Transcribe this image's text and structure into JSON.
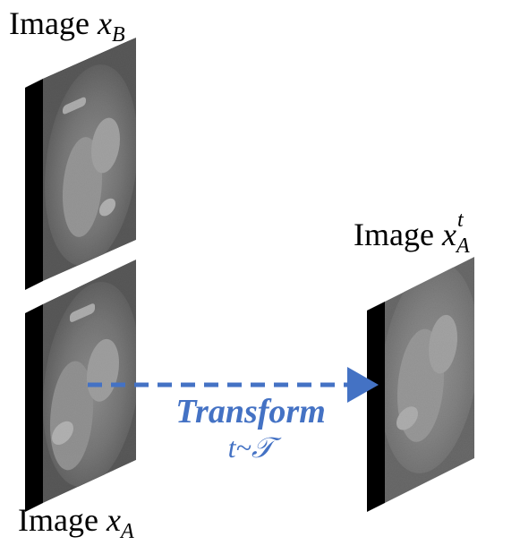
{
  "labels": {
    "image_b": {
      "prefix": "Image ",
      "var": "x",
      "sub": "B"
    },
    "image_a": {
      "prefix": "Image ",
      "var": "x",
      "sub": "A"
    },
    "image_at": {
      "prefix": "Image ",
      "var": "x",
      "sub": "A",
      "sup": "t"
    }
  },
  "transform": {
    "title": "Transform",
    "subtitle": "t~𝒯"
  },
  "colors": {
    "arrow": "#4472C4",
    "text": "#000000",
    "slab_edge": "#000000",
    "ct_background": "#4a4a4a"
  },
  "icons": {
    "slice_b": "ct-slice-icon",
    "slice_a": "ct-slice-icon",
    "slice_at": "ct-slice-icon"
  }
}
